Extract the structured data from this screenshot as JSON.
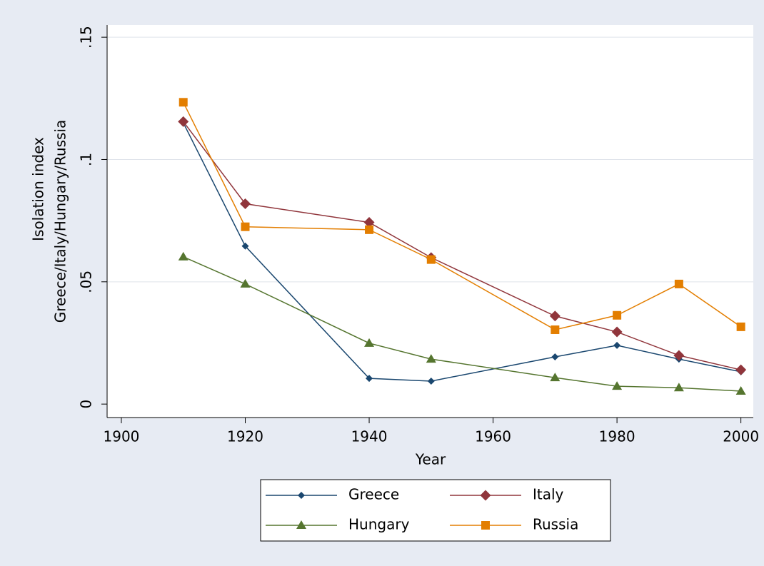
{
  "chart_data": {
    "type": "line",
    "ylabel": [
      "Isolation index",
      "Greece/Italy/Hungary/Russia"
    ],
    "xlabel": "Year",
    "x": [
      1910,
      1920,
      1940,
      1950,
      1970,
      1980,
      1990,
      2000
    ],
    "series": [
      {
        "name": "Greece",
        "color": "#1a476f",
        "marker": "diamond",
        "values": [
          0.115,
          0.0646,
          0.0105,
          0.0094,
          0.0193,
          0.024,
          0.0184,
          0.0132
        ]
      },
      {
        "name": "Italy",
        "color": "#90353b",
        "marker": "diamond-large",
        "values": [
          0.1155,
          0.0819,
          0.0743,
          0.0599,
          0.036,
          0.0295,
          0.0199,
          0.014
        ]
      },
      {
        "name": "Hungary",
        "color": "#55752f",
        "marker": "triangle",
        "values": [
          0.0602,
          0.0491,
          0.0249,
          0.0184,
          0.0108,
          0.0073,
          0.0067,
          0.0053
        ]
      },
      {
        "name": "Russia",
        "color": "#e37e00",
        "marker": "square",
        "values": [
          0.1234,
          0.0725,
          0.0713,
          0.0591,
          0.0304,
          0.0363,
          0.0491,
          0.0316
        ]
      }
    ],
    "xlim": [
      1897.7,
      2002
    ],
    "xticks": [
      1900,
      1920,
      1940,
      1960,
      1980,
      2000
    ],
    "ylim": [
      -0.0055,
      0.155
    ],
    "yticks": [
      0,
      {
        "value": 0.05,
        "label": ".05"
      },
      {
        "value": 0.1,
        "label": ".1"
      },
      {
        "value": 0.15,
        "label": ".15"
      }
    ],
    "grid": true,
    "legend": "bottom"
  }
}
